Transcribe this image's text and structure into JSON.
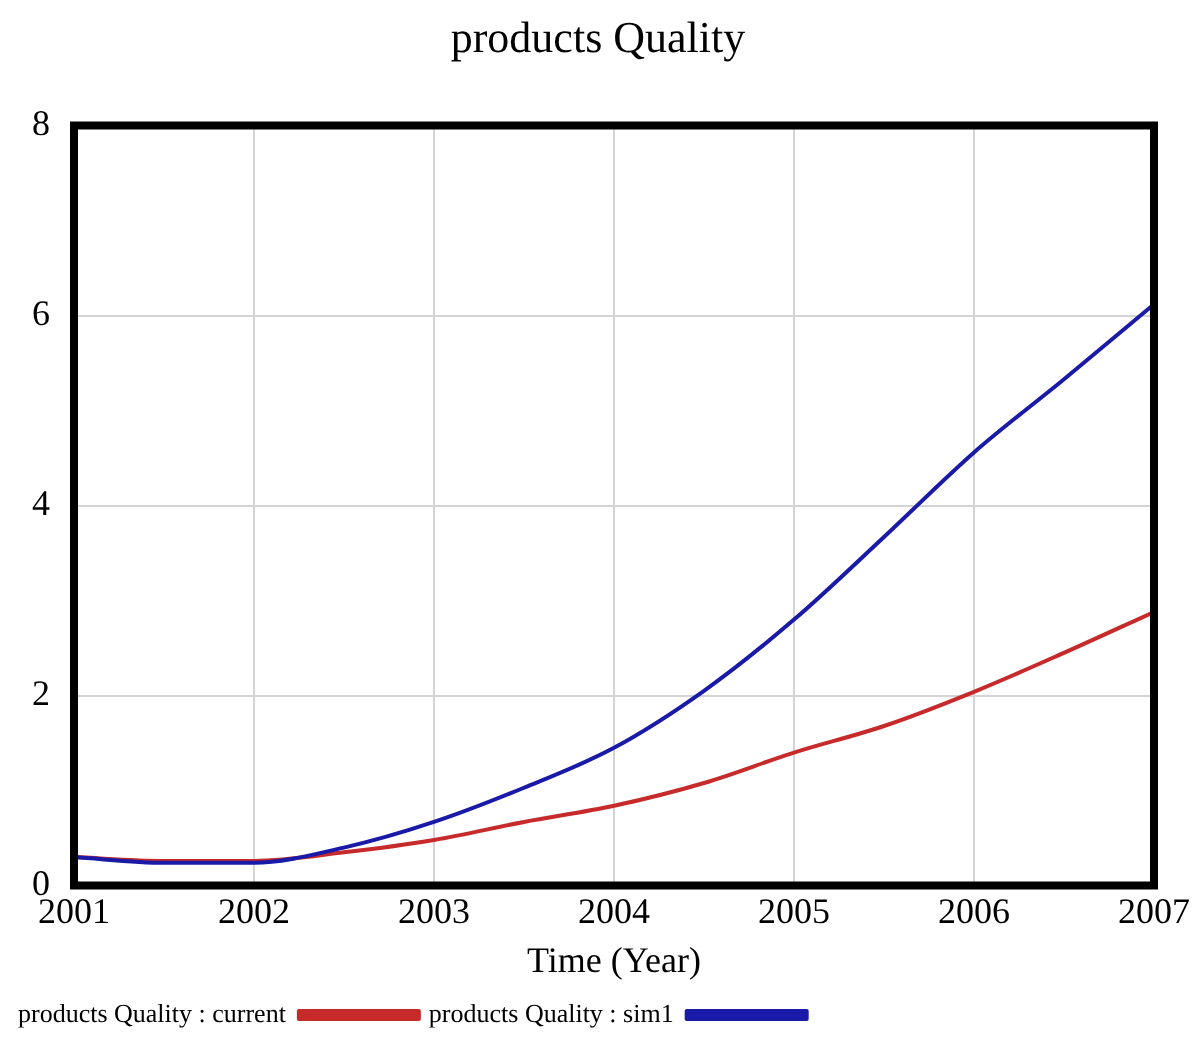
{
  "chart_data": {
    "type": "line",
    "title": "products Quality",
    "xlabel": "Time (Year)",
    "x": [
      2001,
      2001.5,
      2002,
      2002.5,
      2003,
      2003.5,
      2004,
      2004.5,
      2005,
      2005.5,
      2006,
      2006.5,
      2007
    ],
    "xlim": [
      2001,
      2007
    ],
    "xticks": [
      2001,
      2002,
      2003,
      2004,
      2005,
      2006,
      2007
    ],
    "ylim": [
      0,
      8
    ],
    "yticks": [
      0,
      2,
      4,
      6,
      8
    ],
    "grid": true,
    "legend": "bottom",
    "marker": "none",
    "line_style": "solid",
    "series": [
      {
        "name": "products Quality : sim1",
        "color": "#1a1aa8",
        "values": [
          0.3,
          0.24,
          0.24,
          0.4,
          0.67,
          1.03,
          1.45,
          2.05,
          2.8,
          3.67,
          4.56,
          5.33,
          6.12
        ]
      },
      {
        "name": "products Quality : current",
        "color": "#c62a2a",
        "values": [
          0.3,
          0.26,
          0.26,
          0.35,
          0.48,
          0.67,
          0.84,
          1.08,
          1.4,
          1.68,
          2.04,
          2.45,
          2.88
        ]
      }
    ]
  }
}
